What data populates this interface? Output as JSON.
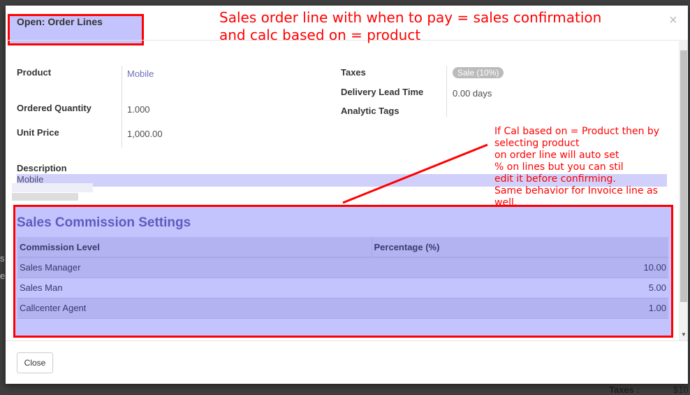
{
  "background": {
    "left_frag1": "s",
    "left_frag2": "es",
    "taxes_label": "Taxes :",
    "taxes_value": "$10"
  },
  "modal": {
    "title": "Open: Order Lines",
    "close_icon": "×",
    "annotation_top": [
      "Sales order line with when to pay = sales confirmation",
      "and calc based on = product"
    ],
    "annotation_side": [
      "If Cal based on = Product then by",
      "selecting product",
      "on order line will auto set",
      "% on lines but you can stil",
      "edit it before confirming.",
      "Same behavior for Invoice line as",
      "well."
    ],
    "fields_left": [
      {
        "label": "Product",
        "value": "Mobile"
      },
      {
        "label": "Ordered Quantity",
        "value": "1.000"
      },
      {
        "label": "Unit Price",
        "value": "1,000.00"
      }
    ],
    "fields_right": [
      {
        "label": "Taxes",
        "value": "Sale (10%)"
      },
      {
        "label": "Delivery Lead Time",
        "value": "0.00 days"
      },
      {
        "label": "Analytic Tags",
        "value": ""
      }
    ],
    "description": {
      "label": "Description",
      "value": "Mobile"
    },
    "commission": {
      "title": "Sales Commission Settings",
      "columns": [
        "Commission Level",
        "Percentage (%)"
      ],
      "rows": [
        {
          "level": "Sales Manager",
          "pct": "10.00"
        },
        {
          "level": "Sales Man",
          "pct": "5.00"
        },
        {
          "level": "Callcenter Agent",
          "pct": "1.00"
        }
      ]
    },
    "close_button": "Close",
    "colors": {
      "highlight": "#c3c3fd",
      "annotation": "#ff0000"
    }
  }
}
